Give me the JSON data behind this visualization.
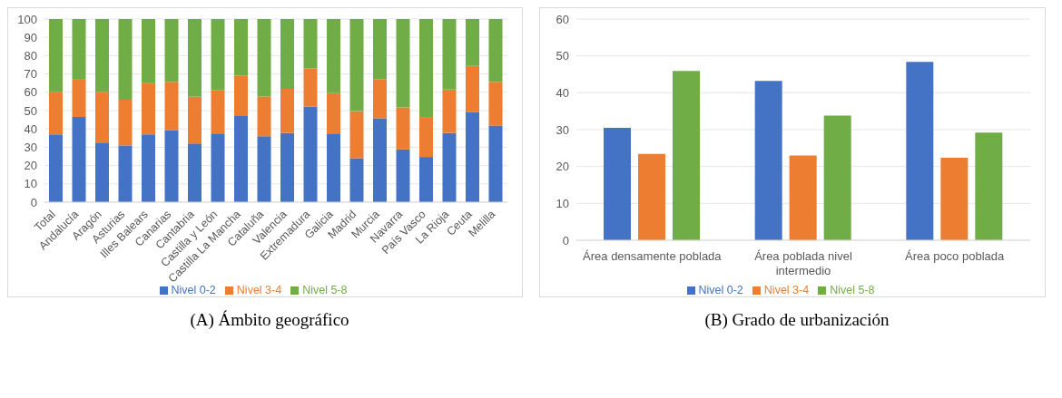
{
  "chart_data": [
    {
      "type": "bar",
      "stacked": true,
      "categories": [
        "Total",
        "Andalucía",
        "Aragón",
        "Asturias",
        "Illes Balears",
        "Canarias",
        "Cantabria",
        "Castilla y León",
        "Castilla La Mancha",
        "Cataluña",
        "Valencia",
        "Extremadura",
        "Galicia",
        "Madrid",
        "Murcia",
        "Navarra",
        "País Vasco",
        "La Rioja",
        "Ceuta",
        "Melilla"
      ],
      "series": [
        {
          "name": "Nivel 0-2",
          "color": "#4472c4",
          "values": [
            37,
            46.5,
            32.5,
            31,
            37,
            39.3,
            32,
            37.5,
            47,
            36,
            37.8,
            52.1,
            37.5,
            24,
            45.8,
            28.8,
            24.7,
            37.8,
            49.1,
            41.8
          ]
        },
        {
          "name": "Nivel 3-4",
          "color": "#ed7d31",
          "values": [
            23,
            20.8,
            27.5,
            25,
            28,
            26.4,
            25.5,
            23.5,
            22,
            21.7,
            24.1,
            21,
            22,
            25.7,
            21.4,
            22.9,
            21.8,
            23.7,
            25.3,
            23.9
          ]
        },
        {
          "name": "Nivel 5-8",
          "color": "#70ad47",
          "values": [
            40,
            32.7,
            40,
            44,
            35,
            34.3,
            42.5,
            39,
            31,
            42.3,
            38.1,
            26.9,
            40.5,
            50.3,
            32.8,
            48.3,
            53.5,
            38.5,
            25.6,
            34.3
          ]
        }
      ],
      "ylim": [
        0,
        100
      ],
      "yticks": [
        0,
        10,
        20,
        30,
        40,
        50,
        60,
        70,
        80,
        90,
        100
      ],
      "grid": "y",
      "legend": "bottom",
      "annotations": [
        "(A) Ámbito geográfico"
      ]
    },
    {
      "type": "bar",
      "categories": [
        "Área densamente poblada",
        "Área poblada nivel intermedio",
        "Área poco poblada"
      ],
      "series": [
        {
          "name": "Nivel 0-2",
          "color": "#4472c4",
          "values": [
            30.5,
            43.2,
            48.4
          ]
        },
        {
          "name": "Nivel 3-4",
          "color": "#ed7d31",
          "values": [
            23.4,
            23.0,
            22.4
          ]
        },
        {
          "name": "Nivel 5-8",
          "color": "#70ad47",
          "values": [
            45.9,
            33.8,
            29.2
          ]
        }
      ],
      "ylim": [
        0,
        60
      ],
      "yticks": [
        0,
        10,
        20,
        30,
        40,
        50,
        60
      ],
      "grid": "y",
      "legend": "bottom",
      "annotations": [
        "(B) Grado de urbanización"
      ]
    }
  ]
}
